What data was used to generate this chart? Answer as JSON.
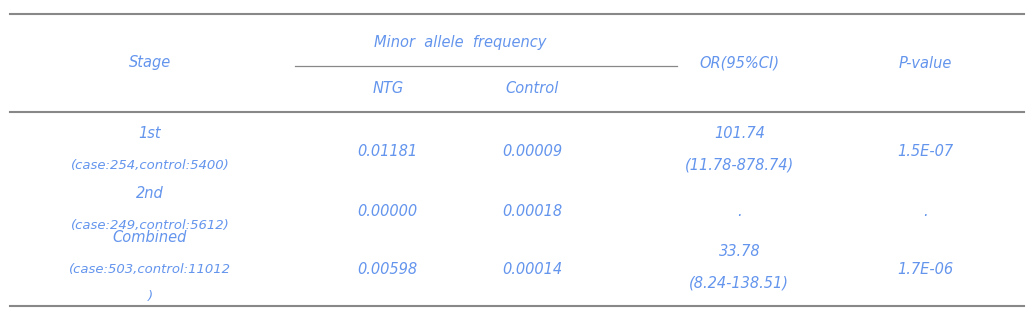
{
  "col_headers_stage": "Stage",
  "col_headers_maf": "Minor  allele  frequency",
  "col_headers_ntg": "NTG",
  "col_headers_control": "Control",
  "col_headers_or": "OR(95%CI)",
  "col_headers_pvalue": "P-value",
  "rows": [
    {
      "stage_line1": "1st",
      "stage_line2": "(case:254,control:5400)",
      "ntg": "0.01181",
      "control": "0.00009",
      "or_line1": "101.74",
      "or_line2": "(11.78-878.74)",
      "pvalue": "1.5E-07"
    },
    {
      "stage_line1": "2nd",
      "stage_line2": "(case:249,control:5612)",
      "ntg": "0.00000",
      "control": "0.00018",
      "or_line1": ".",
      "or_line2": "",
      "pvalue": "."
    },
    {
      "stage_line1": "Combined",
      "stage_line2": "(case:503,control:11012",
      "stage_line3": ")",
      "ntg": "0.00598",
      "control": "0.00014",
      "or_line1": "33.78",
      "or_line2": "(8.24-138.51)",
      "pvalue": "1.7E-06"
    }
  ],
  "text_color": "#6495ED",
  "line_color": "#888888",
  "bg_color": "#ffffff",
  "font_size": 10.5
}
